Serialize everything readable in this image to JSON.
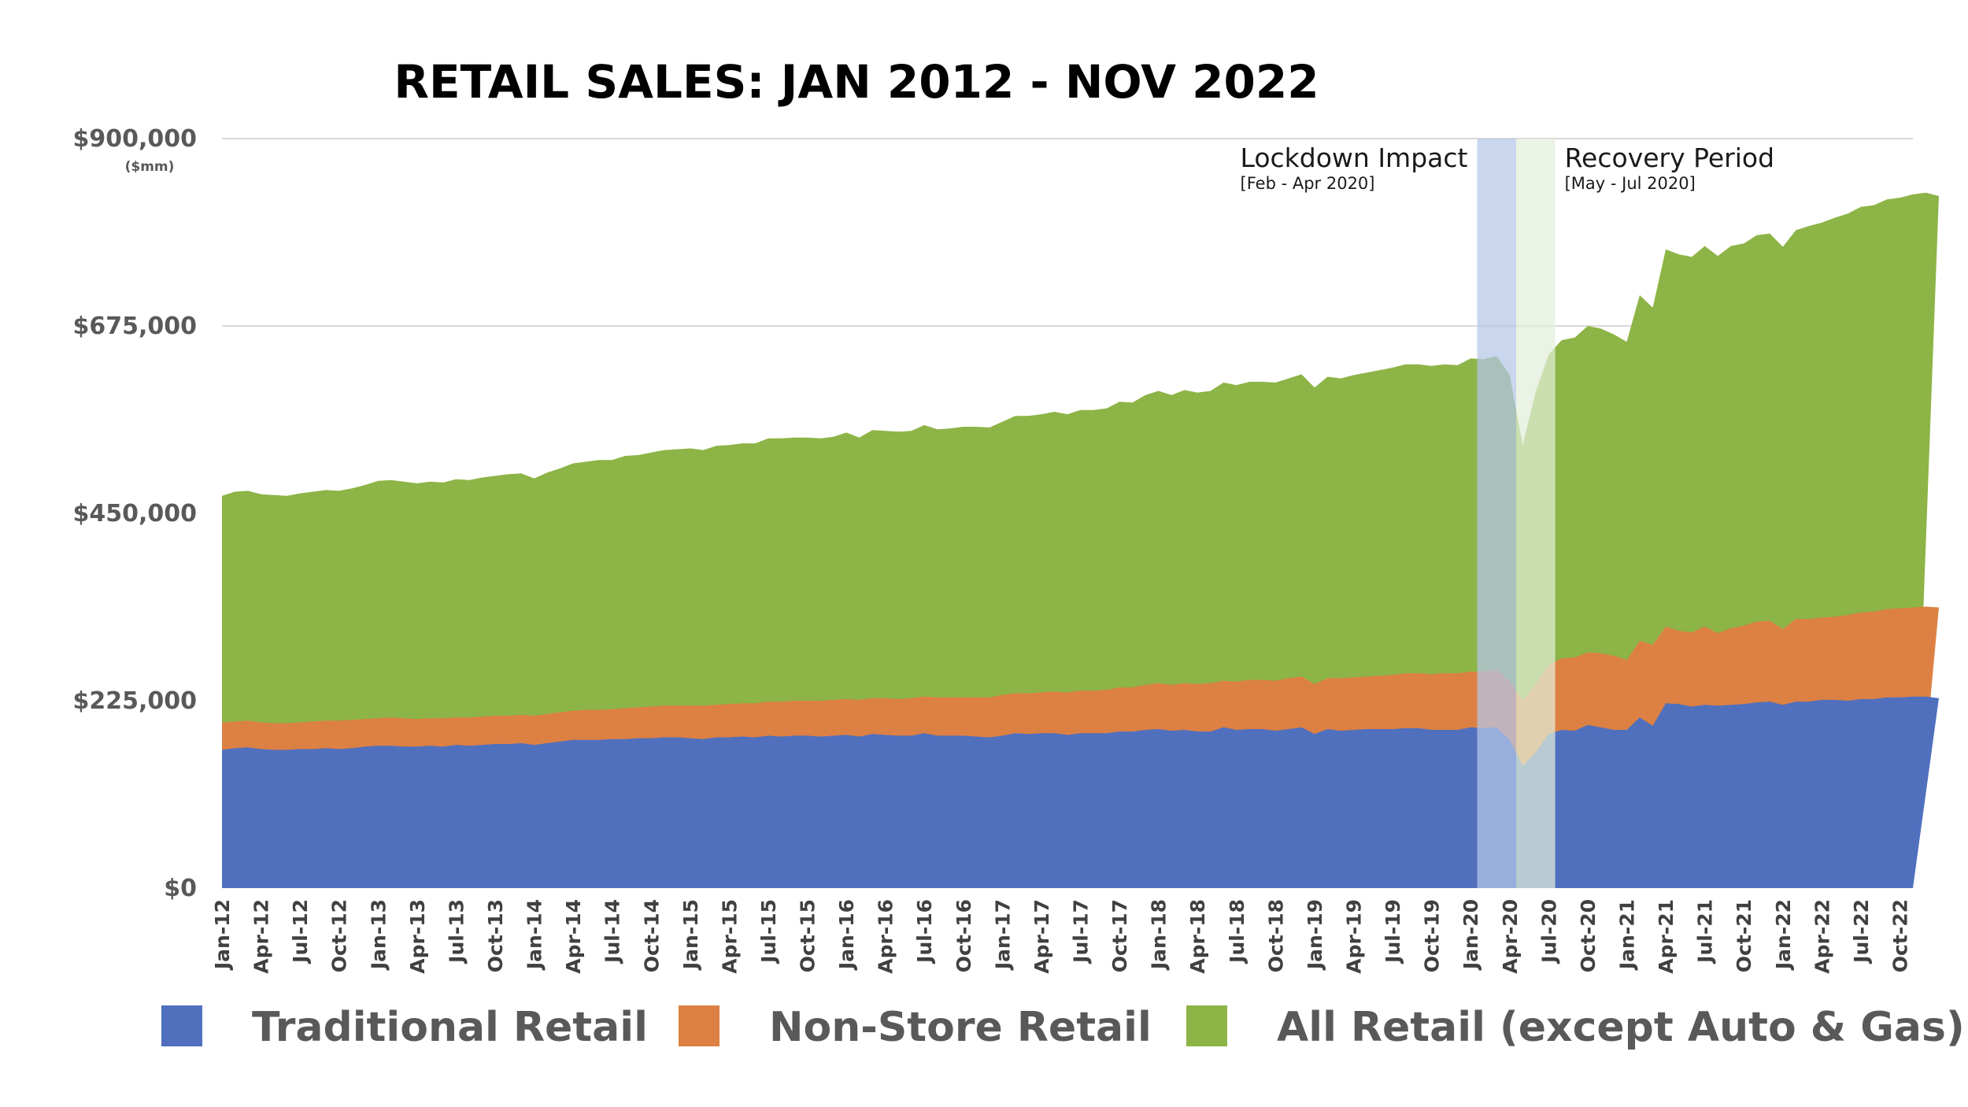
{
  "chart_data": {
    "type": "area",
    "title": "RETAIL SALES:  JAN 2012 - NOV 2022",
    "y_unit_label": "($mm)",
    "ylim": [
      0,
      900000
    ],
    "y_ticks": [
      {
        "value": 0,
        "label": "$0"
      },
      {
        "value": 225000,
        "label": "$225,000"
      },
      {
        "value": 450000,
        "label": "$450,000"
      },
      {
        "value": 675000,
        "label": "$675,000"
      },
      {
        "value": 900000,
        "label": "$900,000"
      }
    ],
    "x_start": "2012-01",
    "x_end": "2022-11",
    "x_tick_labels": [
      "Jan-12",
      "Apr-12",
      "Jul-12",
      "Oct-12",
      "Jan-13",
      "Apr-13",
      "Jul-13",
      "Oct-13",
      "Jan-14",
      "Apr-14",
      "Jul-14",
      "Oct-14",
      "Jan-15",
      "Apr-15",
      "Jul-15",
      "Oct-15",
      "Jan-16",
      "Apr-16",
      "Jul-16",
      "Oct-16",
      "Jan-17",
      "Apr-17",
      "Jul-17",
      "Oct-17",
      "Jan-18",
      "Apr-18",
      "Jul-18",
      "Oct-18",
      "Jan-19",
      "Apr-19",
      "Jul-19",
      "Oct-19",
      "Jan-20",
      "Apr-20",
      "Jul-20",
      "Oct-20",
      "Jan-21",
      "Apr-21",
      "Jul-21",
      "Oct-21",
      "Jan-22",
      "Apr-22",
      "Jul-22",
      "Oct-22"
    ],
    "grid": true,
    "legend_position": "bottom",
    "series": [
      {
        "name": "All Retail (except Auto & Gas)",
        "color": "#8DB446",
        "values": [
          471000,
          476000,
          477000,
          473000,
          472000,
          471000,
          474000,
          476000,
          478000,
          477000,
          480000,
          484000,
          489000,
          490000,
          488000,
          486000,
          488000,
          487000,
          491000,
          490000,
          493000,
          495000,
          497000,
          498000,
          492000,
          499000,
          504000,
          510000,
          512000,
          514000,
          514000,
          519000,
          520000,
          523000,
          526000,
          527000,
          528000,
          526000,
          531000,
          532000,
          534000,
          534000,
          540000,
          540000,
          541000,
          541000,
          540000,
          542000,
          547000,
          541000,
          550000,
          549000,
          548000,
          549000,
          556000,
          551000,
          552000,
          554000,
          554000,
          553000,
          560000,
          567000,
          567000,
          569000,
          572000,
          569000,
          574000,
          574000,
          576000,
          584000,
          583000,
          592000,
          597000,
          592000,
          598000,
          595000,
          597000,
          607000,
          604000,
          608000,
          608000,
          607000,
          612000,
          617000,
          601000,
          614000,
          612000,
          616000,
          619000,
          622000,
          625000,
          629000,
          629000,
          627000,
          629000,
          628000,
          636000,
          635000,
          639000,
          616000,
          532000,
          596000,
          641000,
          658000,
          661000,
          675000,
          672000,
          665000,
          656000,
          712000,
          697000,
          767000,
          761000,
          758000,
          771000,
          759000,
          771000,
          774000,
          784000,
          786000,
          770000,
          790000,
          795000,
          799000,
          805000,
          810000,
          818000,
          820000,
          827000,
          829000,
          833000,
          835000,
          831000
        ]
      },
      {
        "name": "Non-Store Retail",
        "color": "#DD8043",
        "values": [
          199000,
          200000,
          201000,
          199000,
          198000,
          198000,
          199000,
          200000,
          201000,
          201000,
          202000,
          203000,
          204000,
          205000,
          204000,
          203000,
          204000,
          204000,
          205000,
          205000,
          206000,
          207000,
          207000,
          208000,
          207000,
          209000,
          211000,
          213000,
          214000,
          214000,
          215000,
          216000,
          217000,
          218000,
          219000,
          219000,
          219000,
          219000,
          220000,
          221000,
          222000,
          222000,
          224000,
          224000,
          225000,
          225000,
          225000,
          226000,
          227000,
          226000,
          228000,
          228000,
          227000,
          228000,
          230000,
          229000,
          229000,
          229000,
          229000,
          229000,
          232000,
          234000,
          234000,
          235000,
          236000,
          235000,
          237000,
          237000,
          238000,
          241000,
          241000,
          244000,
          246000,
          244000,
          246000,
          245000,
          246000,
          249000,
          248000,
          250000,
          250000,
          249000,
          252000,
          254000,
          245000,
          252000,
          252000,
          253000,
          254000,
          255000,
          256000,
          258000,
          258000,
          257000,
          258000,
          258000,
          260000,
          260000,
          262000,
          249000,
          225000,
          245000,
          268000,
          276000,
          277000,
          283000,
          282000,
          279000,
          274000,
          297000,
          292000,
          314000,
          309000,
          307000,
          314000,
          306000,
          312000,
          315000,
          320000,
          321000,
          311000,
          323000,
          323000,
          325000,
          326000,
          328000,
          331000,
          332000,
          335000,
          336000,
          337000,
          338000,
          337000
        ]
      },
      {
        "name": "Traditional Retail",
        "color": "#5070BE",
        "values": [
          166000,
          168000,
          169000,
          167000,
          166000,
          166000,
          167000,
          167000,
          168000,
          167000,
          168000,
          170000,
          171000,
          171000,
          170000,
          170000,
          171000,
          170000,
          172000,
          171000,
          172000,
          173000,
          173000,
          174000,
          172000,
          174000,
          176000,
          178000,
          178000,
          178000,
          179000,
          179000,
          180000,
          180000,
          181000,
          181000,
          180000,
          179000,
          181000,
          181000,
          182000,
          181000,
          183000,
          182000,
          183000,
          183000,
          182000,
          183000,
          184000,
          182000,
          185000,
          184000,
          183000,
          183000,
          186000,
          183000,
          183000,
          183000,
          182000,
          181000,
          183000,
          186000,
          185000,
          186000,
          186000,
          184000,
          186000,
          186000,
          186000,
          188000,
          188000,
          190000,
          191000,
          189000,
          190000,
          188000,
          188000,
          193000,
          190000,
          191000,
          191000,
          189000,
          191000,
          193000,
          185000,
          191000,
          189000,
          190000,
          191000,
          191000,
          191000,
          192000,
          192000,
          190000,
          190000,
          190000,
          193000,
          192000,
          193000,
          178000,
          147000,
          163000,
          185000,
          190000,
          189000,
          196000,
          193000,
          190000,
          190000,
          205000,
          195000,
          222000,
          221000,
          218000,
          220000,
          219000,
          220000,
          221000,
          223000,
          224000,
          220000,
          224000,
          224000,
          226000,
          226000,
          225000,
          227000,
          227000,
          229000,
          229000,
          230000,
          230000,
          228000
        ]
      }
    ],
    "annotations": [
      {
        "label": "Lockdown Impact",
        "sublabel": "[Feb - Apr 2020]",
        "from": "2020-02",
        "to": "2020-04",
        "color": "#B4C6E7"
      },
      {
        "label": "Recovery Period",
        "sublabel": "[May - Jul 2020]",
        "from": "2020-05",
        "to": "2020-07",
        "color": "#E2EFDA"
      }
    ],
    "legend": [
      {
        "label": "Traditional Retail",
        "color": "#5070BE"
      },
      {
        "label": "Non-Store Retail",
        "color": "#DD8043"
      },
      {
        "label": "All Retail (except Auto & Gas)",
        "color": "#8DB446"
      }
    ]
  }
}
